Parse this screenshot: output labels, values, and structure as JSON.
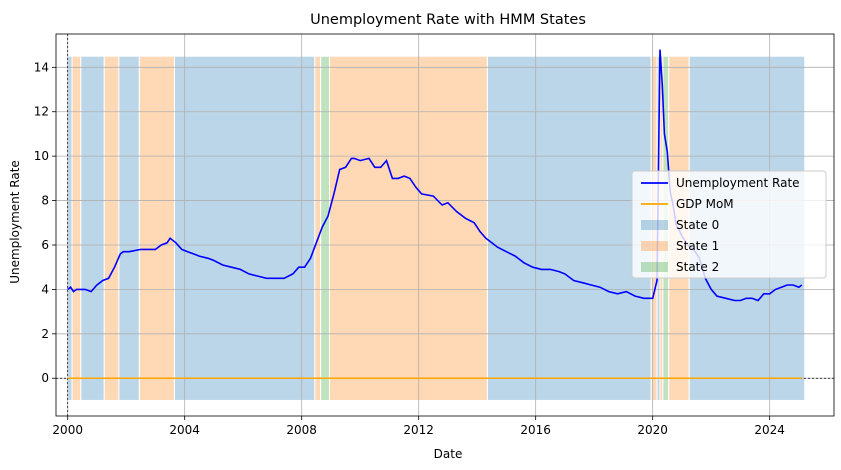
{
  "chart_data": {
    "type": "line",
    "title": "Unemployment Rate with HMM States",
    "xlabel": "Date",
    "ylabel": "Unemployment Rate",
    "xlim": [
      1999.6,
      2026.2
    ],
    "ylim": [
      -1.7,
      15.5
    ],
    "x_ticks": [
      2000,
      2004,
      2008,
      2012,
      2016,
      2020,
      2024
    ],
    "y_ticks": [
      0,
      2,
      4,
      6,
      8,
      10,
      12,
      14
    ],
    "grid": true,
    "legend_position": "center-right",
    "series": [
      {
        "name": "Unemployment Rate",
        "color": "#0000ff",
        "x": [
          2000.0,
          2000.1,
          2000.2,
          2000.3,
          2000.4,
          2000.6,
          2000.8,
          2001.0,
          2001.2,
          2001.4,
          2001.6,
          2001.8,
          2001.9,
          2002.1,
          2002.5,
          2002.8,
          2003.0,
          2003.2,
          2003.4,
          2003.5,
          2003.7,
          2003.9,
          2004.1,
          2004.3,
          2004.5,
          2004.8,
          2005.0,
          2005.3,
          2005.6,
          2005.9,
          2006.2,
          2006.5,
          2006.8,
          2007.1,
          2007.4,
          2007.7,
          2007.9,
          2008.1,
          2008.3,
          2008.5,
          2008.7,
          2008.9,
          2009.1,
          2009.3,
          2009.5,
          2009.7,
          2009.8,
          2010.0,
          2010.3,
          2010.5,
          2010.7,
          2010.9,
          2011.1,
          2011.3,
          2011.5,
          2011.7,
          2011.9,
          2012.1,
          2012.5,
          2012.8,
          2013.0,
          2013.3,
          2013.6,
          2013.9,
          2014.1,
          2014.3,
          2014.5,
          2014.7,
          2015.0,
          2015.3,
          2015.6,
          2015.9,
          2016.2,
          2016.5,
          2016.8,
          2017.0,
          2017.3,
          2017.6,
          2017.9,
          2018.2,
          2018.5,
          2018.8,
          2019.1,
          2019.4,
          2019.7,
          2020.0,
          2020.15,
          2020.25,
          2020.33,
          2020.4,
          2020.5,
          2020.6,
          2020.7,
          2020.8,
          2020.9,
          2021.0,
          2021.2,
          2021.4,
          2021.6,
          2021.8,
          2022.0,
          2022.2,
          2022.5,
          2022.8,
          2023.0,
          2023.2,
          2023.4,
          2023.6,
          2023.8,
          2024.0,
          2024.2,
          2024.4,
          2024.6,
          2024.8,
          2025.0,
          2025.1
        ],
        "values": [
          4.0,
          4.1,
          3.9,
          4.0,
          4.0,
          4.0,
          3.9,
          4.2,
          4.4,
          4.5,
          5.0,
          5.6,
          5.7,
          5.7,
          5.8,
          5.8,
          5.8,
          6.0,
          6.1,
          6.3,
          6.1,
          5.8,
          5.7,
          5.6,
          5.5,
          5.4,
          5.3,
          5.1,
          5.0,
          4.9,
          4.7,
          4.6,
          4.5,
          4.5,
          4.5,
          4.7,
          5.0,
          5.0,
          5.4,
          6.1,
          6.8,
          7.3,
          8.3,
          9.4,
          9.5,
          9.9,
          9.9,
          9.8,
          9.9,
          9.5,
          9.5,
          9.8,
          9.0,
          9.0,
          9.1,
          9.0,
          8.6,
          8.3,
          8.2,
          7.8,
          7.9,
          7.5,
          7.2,
          7.0,
          6.6,
          6.3,
          6.1,
          5.9,
          5.7,
          5.5,
          5.2,
          5.0,
          4.9,
          4.9,
          4.8,
          4.7,
          4.4,
          4.3,
          4.2,
          4.1,
          3.9,
          3.8,
          3.9,
          3.7,
          3.6,
          3.6,
          4.4,
          14.8,
          13.2,
          11.0,
          10.2,
          8.4,
          7.8,
          6.9,
          6.7,
          6.4,
          6.0,
          5.8,
          5.4,
          4.5,
          4.0,
          3.7,
          3.6,
          3.5,
          3.5,
          3.6,
          3.6,
          3.5,
          3.8,
          3.8,
          4.0,
          4.1,
          4.2,
          4.2,
          4.1,
          4.2
        ]
      },
      {
        "name": "GDP MoM",
        "color": "#ffa500",
        "x": [
          2000.0,
          2025.1
        ],
        "values": [
          0.0,
          0.0
        ]
      }
    ],
    "states": [
      {
        "name": "State 0",
        "color": "#1f77b4"
      },
      {
        "name": "State 1",
        "color": "#ff7f0e"
      },
      {
        "name": "State 2",
        "color": "#2ca02c"
      }
    ],
    "state_segments": [
      {
        "start": 2000.0,
        "end": 2000.15,
        "state": 0
      },
      {
        "start": 2000.15,
        "end": 2000.45,
        "state": 1
      },
      {
        "start": 2000.45,
        "end": 2001.25,
        "state": 0
      },
      {
        "start": 2001.25,
        "end": 2001.75,
        "state": 1
      },
      {
        "start": 2001.75,
        "end": 2002.45,
        "state": 0
      },
      {
        "start": 2002.45,
        "end": 2003.65,
        "state": 1
      },
      {
        "start": 2003.65,
        "end": 2008.45,
        "state": 0
      },
      {
        "start": 2008.45,
        "end": 2008.65,
        "state": 1
      },
      {
        "start": 2008.65,
        "end": 2008.95,
        "state": 2
      },
      {
        "start": 2008.95,
        "end": 2014.35,
        "state": 1
      },
      {
        "start": 2014.35,
        "end": 2019.95,
        "state": 0
      },
      {
        "start": 2019.95,
        "end": 2020.15,
        "state": 1
      },
      {
        "start": 2020.15,
        "end": 2020.25,
        "state": 0
      },
      {
        "start": 2020.25,
        "end": 2020.35,
        "state": 1
      },
      {
        "start": 2020.35,
        "end": 2020.55,
        "state": 2
      },
      {
        "start": 2020.55,
        "end": 2021.25,
        "state": 1
      },
      {
        "start": 2021.25,
        "end": 2025.2,
        "state": 0
      }
    ],
    "reference_lines": [
      {
        "orientation": "horizontal",
        "value": 0
      },
      {
        "orientation": "vertical",
        "value": 2000.0
      }
    ]
  }
}
